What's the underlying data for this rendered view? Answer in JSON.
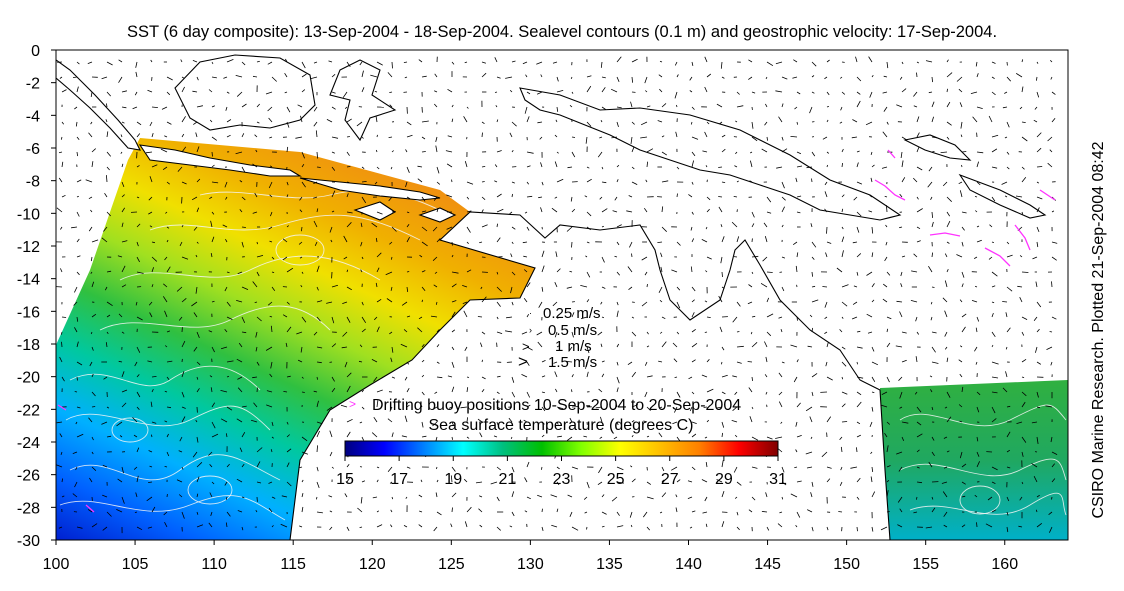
{
  "title": "SST (6 day composite): 13-Sep-2004 - 18-Sep-2004. Sealevel contours (0.1 m) and geostrophic velocity: 17-Sep-2004.",
  "side_credit": "CSIRO Marine Research. Plotted 21-Sep-2004 08:42",
  "axes": {
    "x": {
      "min": 100,
      "max": 164,
      "ticks": [
        "100",
        "105",
        "110",
        "115",
        "120",
        "125",
        "130",
        "135",
        "140",
        "145",
        "150",
        "155",
        "160"
      ]
    },
    "y": {
      "min": -30,
      "max": 0,
      "ticks": [
        "0",
        "-2",
        "-4",
        "-6",
        "-8",
        "-10",
        "-12",
        "-14",
        "-16",
        "-18",
        "-20",
        "-22",
        "-24",
        "-26",
        "-28",
        "-30"
      ]
    }
  },
  "velocity_legend": [
    "0.25 m/s",
    "0.5 m/s",
    "1 m/s",
    "1.5 m/s"
  ],
  "buoy_legend": {
    "marker": ">",
    "text": "Drifting buoy positions 10-Sep-2004 to 20-Sep-2004",
    "color": "#ff33ff"
  },
  "colorbar": {
    "title": "Sea surface temperature (degrees C)",
    "min": 15,
    "max": 31,
    "ticks": [
      "15",
      "17",
      "19",
      "21",
      "23",
      "25",
      "27",
      "29",
      "31"
    ],
    "colors": [
      "#00007f",
      "#0000ff",
      "#0080ff",
      "#00ffff",
      "#00c080",
      "#00c000",
      "#80ff00",
      "#ffff00",
      "#ffc000",
      "#ff8000",
      "#ff0000",
      "#800000"
    ]
  }
}
